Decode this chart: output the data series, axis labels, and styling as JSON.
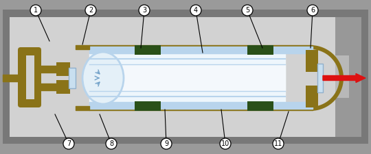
{
  "gray_outer": "#9a9a9a",
  "gray_inner": "#d2d2d2",
  "gold": "#8a7318",
  "gold_light": "#a08a20",
  "blue_tube": "#b8d4ec",
  "blue_light": "#ddeefa",
  "blue_inner": "#eef6fc",
  "green_mount": "#2a5018",
  "red_arrow": "#dd1111",
  "white": "#ffffff",
  "black": "#000000",
  "label_font": 7,
  "circle_r": 8,
  "labels_top": [
    [
      "1",
      52,
      197,
      76,
      160
    ],
    [
      "2",
      130,
      197,
      120,
      162
    ],
    [
      "3",
      207,
      197,
      200,
      158
    ],
    [
      "4",
      282,
      197,
      290,
      150
    ],
    [
      "5",
      357,
      197,
      380,
      155
    ],
    [
      "6",
      453,
      197,
      455,
      152
    ]
  ],
  "labels_bot": [
    [
      "7",
      100,
      22,
      78,
      64
    ],
    [
      "8",
      160,
      22,
      148,
      60
    ],
    [
      "9",
      240,
      22,
      238,
      62
    ],
    [
      "10",
      325,
      22,
      318,
      62
    ],
    [
      "11",
      400,
      22,
      418,
      62
    ]
  ]
}
